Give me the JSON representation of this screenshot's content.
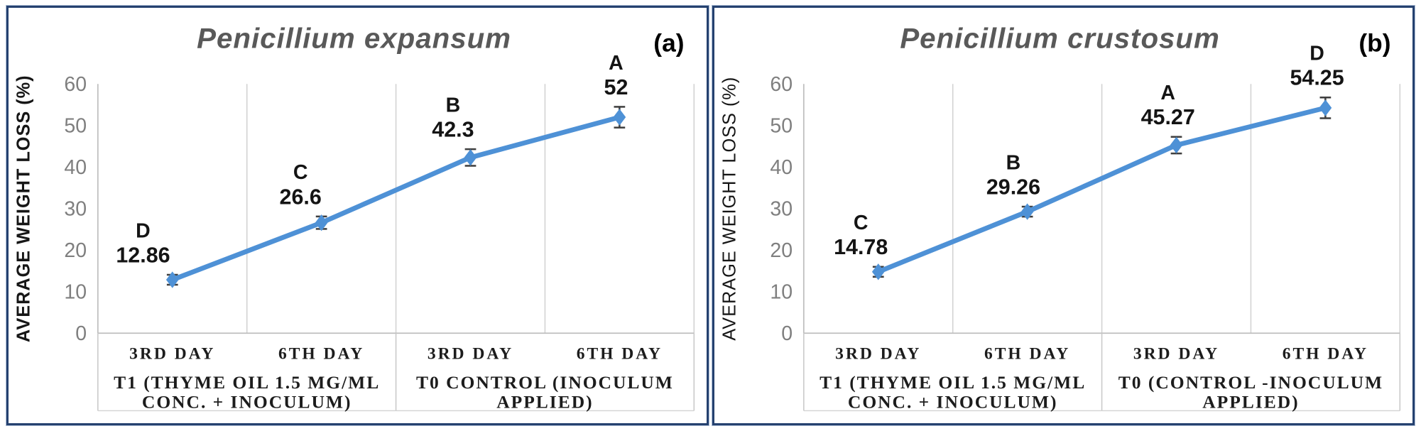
{
  "figure": {
    "description": "Average weight loss line charts for two Penicillium species",
    "panels": [
      "(a)",
      "(b)"
    ]
  },
  "style": {
    "line_color": "#4E91D6",
    "marker_color": "#4E91D6",
    "error_bar_color": "#3F3F3F",
    "grid_color": "#D2D2D2",
    "axis_color": "#BFBFBF",
    "band_line_color": "#C9C9C9",
    "title_color": "#595959",
    "tick_label_color": "#7F7F7F",
    "data_label_color": "#141414",
    "category_label_color": "#1C1C1C",
    "panel_tag_color": "#000000",
    "panel_border_color": "#25416F",
    "background": "#FFFFFF"
  },
  "chart_data": [
    {
      "type": "line",
      "panel_tag": "(a)",
      "title": "Penicillium expansum",
      "ylabel": "AVERAGE WEIGHT LOSS (%)",
      "ylim": [
        0,
        60
      ],
      "yticks": [
        0,
        10,
        20,
        30,
        40,
        50,
        60
      ],
      "grid": "vertical-category-boundaries",
      "legend": "none",
      "categories": [
        "3RD DAY",
        "6TH DAY",
        "3RD DAY",
        "6TH DAY"
      ],
      "group_labels": [
        [
          "T1 (THYME OIL 1.5 MG/ML",
          "CONC. + INOCULUM)"
        ],
        [
          "T0 CONTROL (INOCULUM",
          "APPLIED)"
        ]
      ],
      "series": [
        {
          "name": "average weight loss",
          "marker": "diamond",
          "values": [
            12.86,
            26.6,
            42.3,
            52
          ],
          "value_labels": [
            "12.86",
            "26.6",
            "42.3",
            "52"
          ],
          "point_letters": [
            "D",
            "C",
            "B",
            "A"
          ],
          "error_bars": [
            1.2,
            1.5,
            2.0,
            2.5
          ]
        }
      ]
    },
    {
      "type": "line",
      "panel_tag": "(b)",
      "title": "Penicillium crustosum",
      "ylabel": "AVERAGE WEIGHT LOSS (%)",
      "ylim": [
        0,
        60
      ],
      "yticks": [
        0,
        10,
        20,
        30,
        40,
        50,
        60
      ],
      "grid": "vertical-category-boundaries",
      "legend": "none",
      "categories": [
        "3RD DAY",
        "6TH DAY",
        "3RD DAY",
        "6TH DAY"
      ],
      "group_labels": [
        [
          "T1 (THYME OIL 1.5 MG/ML",
          "CONC. + INOCULUM)"
        ],
        [
          "T0 (CONTROL -INOCULUM",
          "APPLIED)"
        ]
      ],
      "series": [
        {
          "name": "average weight loss",
          "marker": "diamond",
          "values": [
            14.78,
            29.26,
            45.27,
            54.25
          ],
          "value_labels": [
            "14.78",
            "29.26",
            "45.27",
            "54.25"
          ],
          "point_letters": [
            "C",
            "B",
            "A",
            "D"
          ],
          "error_bars": [
            1.2,
            1.2,
            2.0,
            2.5
          ]
        }
      ]
    }
  ]
}
